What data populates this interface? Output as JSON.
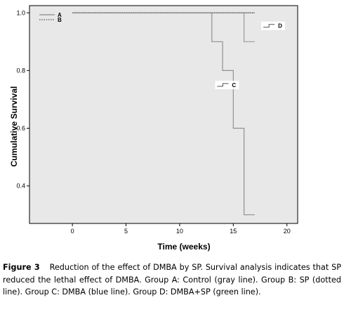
{
  "chart_data": {
    "type": "line",
    "step": true,
    "xlabel": "Time (weeks)",
    "ylabel": "Cumulative Survival",
    "xlim": [
      -4,
      21
    ],
    "ylim": [
      0.27,
      1.025
    ],
    "x_ticks": [
      0,
      5,
      10,
      15,
      20
    ],
    "x_tick_labels": [
      "0",
      "5",
      "10",
      "15",
      "20"
    ],
    "y_ticks": [
      0.4,
      0.6,
      0.8,
      1.0
    ],
    "y_tick_labels": [
      "0.4",
      "0.6",
      "0.8",
      "1.0"
    ],
    "grid": false,
    "plot_background": "#e8e8e8",
    "series": [
      {
        "name": "A",
        "style": "solid",
        "color": "#999999",
        "x": [
          0,
          17
        ],
        "y": [
          1.0,
          1.0
        ]
      },
      {
        "name": "B",
        "style": "dotted",
        "color": "#808080",
        "x": [
          0,
          17
        ],
        "y": [
          1.0,
          1.0
        ]
      },
      {
        "name": "C",
        "style": "solid",
        "color": "#909090",
        "x": [
          0,
          13,
          14,
          15,
          16,
          17
        ],
        "y": [
          1.0,
          0.9,
          0.8,
          0.6,
          0.3,
          0.3
        ]
      },
      {
        "name": "D",
        "style": "solid",
        "color": "#999999",
        "x": [
          0,
          16,
          17
        ],
        "y": [
          1.0,
          0.9,
          0.9
        ]
      }
    ],
    "legend": {
      "placement": "top-left",
      "entries": [
        "A",
        "B"
      ]
    },
    "annotations": [
      {
        "label": "C",
        "x": 13.5,
        "y": 0.75
      },
      {
        "label": "D",
        "x": 17.8,
        "y": 0.955
      }
    ]
  },
  "caption": {
    "figure_label": "Figure 3",
    "text": "Reduction of the effect of DMBA by SP. Survival analysis indicates that SP reduced the lethal effect of DMBA. Group A: Control (gray line). Group B: SP (dotted line). Group C: DMBA (blue line). Group D: DMBA+SP (green line)."
  }
}
